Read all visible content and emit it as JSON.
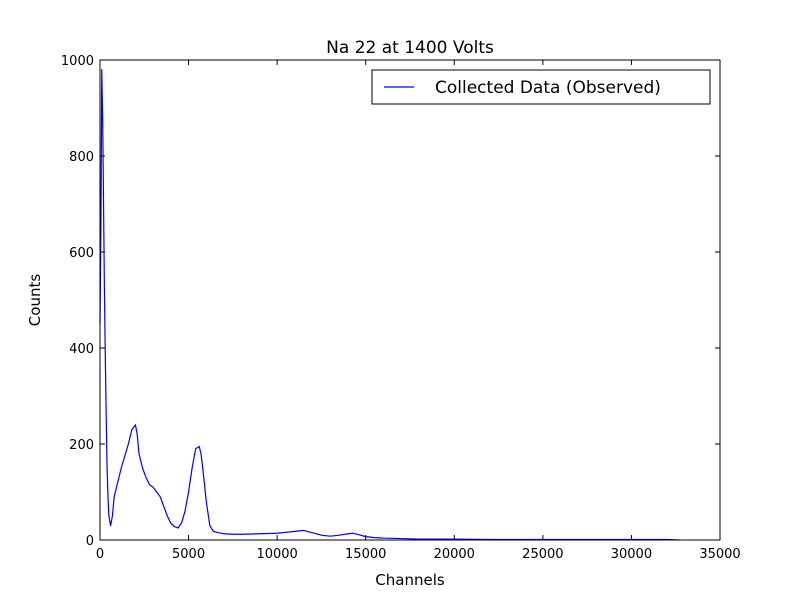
{
  "chart_data": {
    "type": "line",
    "title": "Na 22 at 1400 Volts",
    "xlabel": "Channels",
    "ylabel": "Counts",
    "xlim": [
      0,
      35000
    ],
    "ylim": [
      0,
      1000
    ],
    "xticks": [
      0,
      5000,
      10000,
      15000,
      20000,
      25000,
      30000,
      35000
    ],
    "yticks": [
      0,
      200,
      400,
      600,
      800,
      1000
    ],
    "grid": false,
    "legend_position": "top-right",
    "series": [
      {
        "name": "Collected Data (Observed)",
        "color": "#0000ff",
        "x": [
          0,
          50,
          100,
          150,
          200,
          250,
          300,
          350,
          400,
          450,
          500,
          600,
          700,
          800,
          1000,
          1200,
          1400,
          1600,
          1800,
          2000,
          2100,
          2200,
          2400,
          2600,
          2800,
          3000,
          3200,
          3400,
          3600,
          3800,
          4000,
          4200,
          4400,
          4600,
          4800,
          5000,
          5200,
          5400,
          5600,
          5700,
          5800,
          6000,
          6200,
          6400,
          6700,
          7000,
          7500,
          8000,
          9000,
          10000,
          10500,
          11000,
          11500,
          12000,
          12500,
          13000,
          13500,
          14000,
          14300,
          14600,
          15000,
          15500,
          16000,
          17000,
          18000,
          20000,
          22000,
          24000,
          26000,
          28000,
          30000,
          32000,
          32700
        ],
        "y": [
          450,
          650,
          980,
          880,
          700,
          520,
          380,
          260,
          150,
          90,
          50,
          30,
          50,
          90,
          120,
          150,
          175,
          200,
          230,
          240,
          220,
          180,
          150,
          130,
          115,
          110,
          100,
          90,
          70,
          50,
          35,
          28,
          25,
          35,
          60,
          100,
          150,
          190,
          195,
          180,
          150,
          80,
          30,
          18,
          15,
          13,
          12,
          12,
          13,
          14,
          16,
          18,
          20,
          15,
          10,
          8,
          10,
          13,
          14,
          11,
          7,
          5,
          4,
          3,
          2,
          2,
          1,
          1,
          1,
          1,
          1,
          1,
          0
        ]
      }
    ]
  }
}
